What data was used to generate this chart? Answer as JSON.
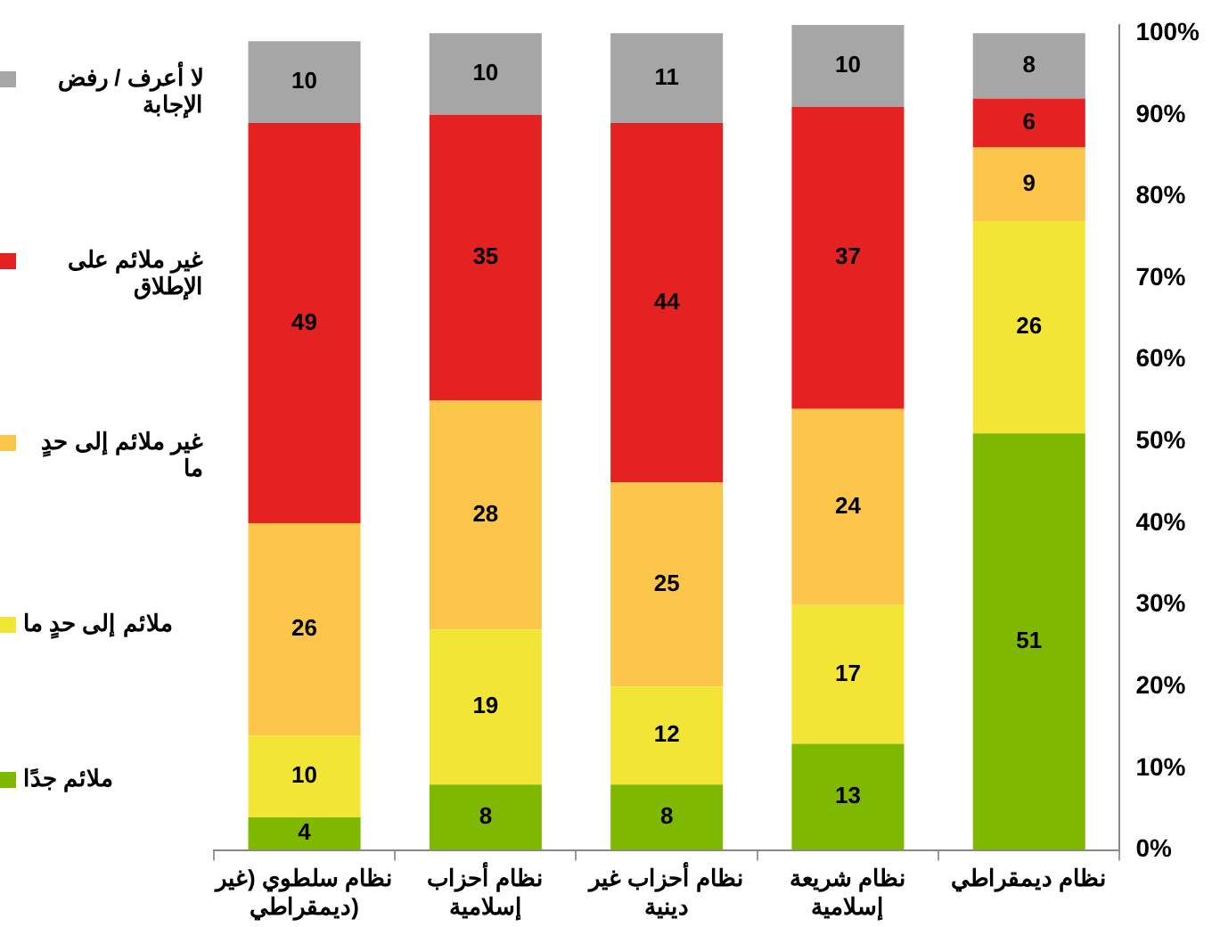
{
  "chart_data": {
    "type": "bar",
    "stacked": true,
    "categories": [
      "نظام سلطوي (غير ديمقراطي)",
      "نظام أحزاب إسلامية",
      "نظام أحزاب غير دينية",
      "نظام شريعة إسلامية",
      "نظام ديمقراطي"
    ],
    "series": [
      {
        "name": "ملائم جدًا",
        "color": "#7fb800",
        "values": [
          4,
          8,
          8,
          13,
          51
        ]
      },
      {
        "name": "ملائم إلى حدٍ ما",
        "color": "#f2e535",
        "values": [
          10,
          19,
          12,
          17,
          26
        ]
      },
      {
        "name": "غير ملائم إلى حدٍ ما",
        "color": "#fcc64a",
        "values": [
          26,
          28,
          25,
          24,
          9
        ]
      },
      {
        "name": "غير ملائم على الإطلاق",
        "color": "#e42222",
        "values": [
          49,
          35,
          44,
          37,
          6
        ]
      },
      {
        "name": "لا أعرف / رفض الإجابة",
        "color": "#a6a6a6",
        "values": [
          10,
          10,
          11,
          10,
          8
        ]
      }
    ],
    "ylim": [
      0,
      101
    ],
    "yticks": [
      {
        "value": 0,
        "label": "0%"
      },
      {
        "value": 10,
        "label": "10%"
      },
      {
        "value": 20,
        "label": "20%"
      },
      {
        "value": 30,
        "label": "30%"
      },
      {
        "value": 40,
        "label": "40%"
      },
      {
        "value": 50,
        "label": "50%"
      },
      {
        "value": 60,
        "label": "60%"
      },
      {
        "value": 70,
        "label": "70%"
      },
      {
        "value": 80,
        "label": "80%"
      },
      {
        "value": 90,
        "label": "90%"
      },
      {
        "value": 100,
        "label": "100%"
      }
    ],
    "data_labels": true,
    "grid": false,
    "legend": "left"
  }
}
